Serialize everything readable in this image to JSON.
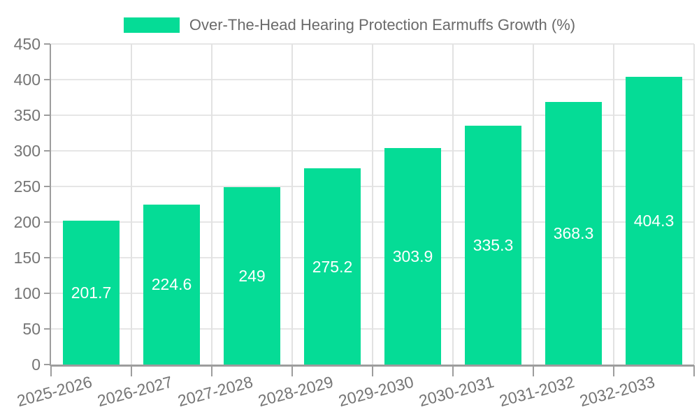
{
  "chart_data": {
    "type": "bar",
    "title": "Over-The-Head Hearing Protection Earmuffs Growth (%)",
    "legend": {
      "position": "top",
      "entries": [
        "Over-The-Head Hearing Protection Earmuffs Growth (%)"
      ]
    },
    "categories": [
      "2025-2026",
      "2026-2027",
      "2027-2028",
      "2028-2029",
      "2029-2030",
      "2030-2031",
      "2031-2032",
      "2032-2033"
    ],
    "values": [
      201.7,
      224.6,
      249,
      275.2,
      303.9,
      335.3,
      368.3,
      404.3
    ],
    "value_labels": [
      "201.7",
      "224.6",
      "249",
      "275.2",
      "303.9",
      "335.3",
      "368.3",
      "404.3"
    ],
    "xlabel": "",
    "ylabel": "",
    "ylim": [
      0,
      450
    ],
    "yticks": [
      0,
      50,
      100,
      150,
      200,
      250,
      300,
      350,
      400,
      450
    ],
    "grid": true,
    "x_label_rotation_deg": -15,
    "colors": {
      "bar": "#05DC96",
      "grid": "#e6e6e6",
      "axis": "#9d9d9d",
      "tick_label": "#757575",
      "legend_text": "#6a6a6a",
      "value_label": "#ffffff",
      "background": "#ffffff"
    }
  }
}
